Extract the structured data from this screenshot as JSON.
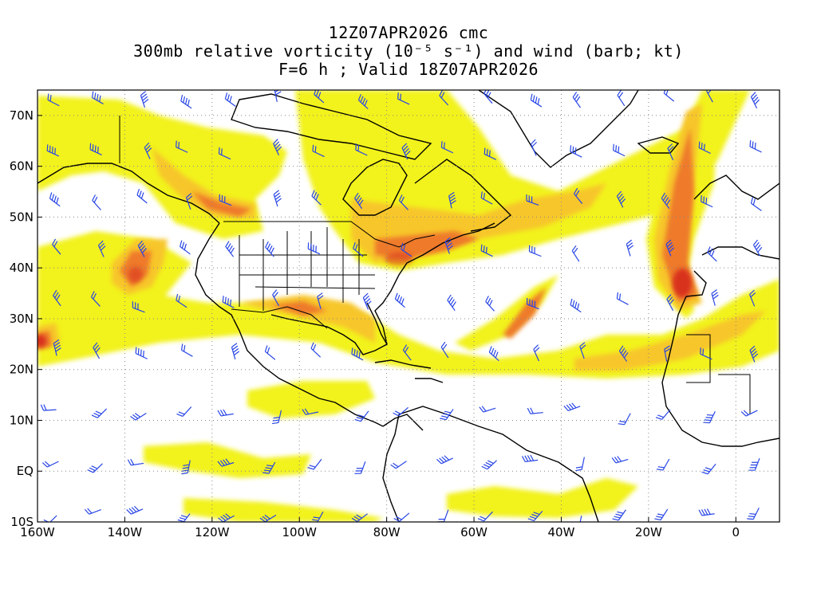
{
  "title": {
    "line1": "12Z07APR2026 cmc",
    "line2": "300mb relative vorticity (10⁻⁵ s⁻¹) and wind (barb; kt)",
    "line3": "F=6 h ; Valid 18Z07APR2026"
  },
  "map": {
    "lon_range": [
      -160,
      10
    ],
    "lat_range": [
      -10,
      75
    ],
    "lon_ticks": [
      "160W",
      "140W",
      "120W",
      "100W",
      "80W",
      "60W",
      "40W",
      "20W",
      "0"
    ],
    "lat_ticks": [
      "70N",
      "60N",
      "50N",
      "40N",
      "30N",
      "20N",
      "10N",
      "EQ",
      "10S"
    ],
    "grid": "dotted",
    "colors": {
      "vorticity_low": "#f2f21e",
      "vorticity_mid": "#f7c62a",
      "vorticity_high": "#ee7a2a",
      "vorticity_max": "#d8301c",
      "barb": "#2846e6",
      "coast": "#000000"
    }
  }
}
